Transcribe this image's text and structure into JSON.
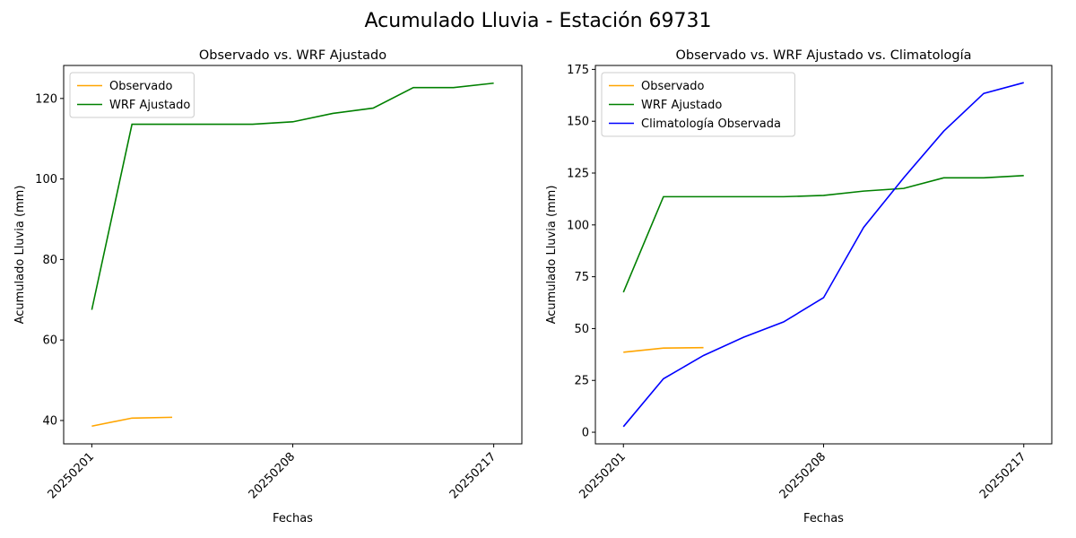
{
  "figure": {
    "suptitle": "Acumulado Lluvia - Estación 69731"
  },
  "colors": {
    "observado": "#FFA500",
    "wrf": "#008000",
    "climatologia": "#0000FF",
    "axis": "#000000",
    "legend_border": "#cccccc"
  },
  "chart_data": [
    {
      "type": "line",
      "title": "Observado vs. WRF Ajustado",
      "xlabel": "Fechas",
      "ylabel": "Acumulado Lluvia (mm)",
      "x_ticks": [
        "20250201",
        "20250208",
        "20250217"
      ],
      "xlim": [
        -0.7,
        10.7
      ],
      "ylim": [
        34.2,
        128.2
      ],
      "y_ticks": [
        40,
        60,
        80,
        100,
        120
      ],
      "legend_position": "upper left",
      "series": [
        {
          "name": "Observado",
          "color": "#FFA500",
          "x": [
            0,
            1,
            2
          ],
          "values": [
            38.6,
            40.6,
            40.8
          ]
        },
        {
          "name": "WRF Ajustado",
          "color": "#008000",
          "x": [
            0,
            1,
            2,
            3,
            4,
            5,
            6,
            7,
            8,
            9,
            10
          ],
          "values": [
            67.5,
            113.6,
            113.6,
            113.6,
            113.6,
            114.2,
            116.3,
            117.6,
            122.7,
            122.7,
            123.8
          ]
        }
      ]
    },
    {
      "type": "line",
      "title": "Observado vs. WRF Ajustado vs. Climatología",
      "xlabel": "Fechas",
      "ylabel": "Acumulado Lluvia (mm)",
      "x_ticks": [
        "20250201",
        "20250208",
        "20250217"
      ],
      "xlim": [
        -0.7,
        10.7
      ],
      "ylim": [
        -5.6,
        176.9
      ],
      "y_ticks": [
        0,
        25,
        50,
        75,
        100,
        125,
        150,
        175
      ],
      "legend_position": "upper left",
      "series": [
        {
          "name": "Observado",
          "color": "#FFA500",
          "x": [
            0,
            1,
            2
          ],
          "values": [
            38.6,
            40.6,
            40.8
          ]
        },
        {
          "name": "WRF Ajustado",
          "color": "#008000",
          "x": [
            0,
            1,
            2,
            3,
            4,
            5,
            6,
            7,
            8,
            9,
            10
          ],
          "values": [
            67.5,
            113.6,
            113.6,
            113.6,
            113.6,
            114.2,
            116.3,
            117.6,
            122.7,
            122.7,
            123.8
          ]
        },
        {
          "name": "Climatología Observada",
          "color": "#0000FF",
          "x": [
            0,
            1,
            2,
            3,
            4,
            5,
            6,
            7,
            8,
            9,
            10
          ],
          "values": [
            2.7,
            25.8,
            37.0,
            45.8,
            53.2,
            64.9,
            98.8,
            122.7,
            145.2,
            163.4,
            168.6
          ]
        }
      ]
    }
  ]
}
